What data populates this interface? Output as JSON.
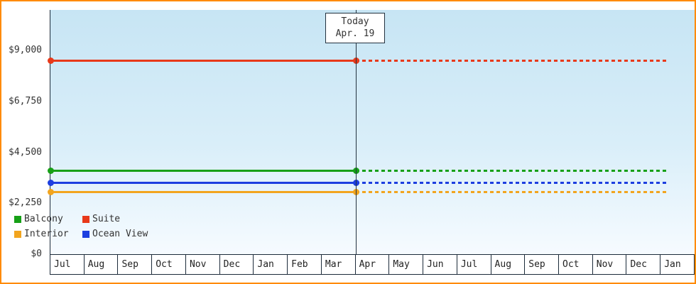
{
  "chart_data": {
    "type": "line",
    "title": "",
    "categories": [
      "Jul",
      "Aug",
      "Sep",
      "Oct",
      "Nov",
      "Dec",
      "Jan",
      "Feb",
      "Mar",
      "Apr",
      "May",
      "Jun",
      "Jul",
      "Aug",
      "Sep",
      "Oct",
      "Nov",
      "Dec",
      "Jan"
    ],
    "series": [
      {
        "name": "Balcony",
        "color": "#17a017",
        "value": 3700
      },
      {
        "name": "Suite",
        "color": "#e8391a",
        "value": 8550
      },
      {
        "name": "Interior",
        "color": "#f2a51f",
        "value": 2750
      },
      {
        "name": "Ocean View",
        "color": "#1d3fe0",
        "value": 3150
      }
    ],
    "legend_order": [
      "Balcony",
      "Suite",
      "Interior",
      "Ocean View"
    ],
    "yticks": [
      0,
      2250,
      4500,
      6750,
      9000
    ],
    "ytick_labels": [
      "$0",
      "$2,250",
      "$4,500",
      "$6,750",
      "$9,000"
    ],
    "ylim": [
      0,
      10800
    ],
    "today": {
      "label_line1": "Today",
      "label_line2": "Apr. 19",
      "category_index": 9
    },
    "line_style": {
      "before_today": "solid",
      "after_today": "dotted"
    },
    "legend_position": "bottom-left-inside"
  },
  "colors": {
    "frame_border": "#ff8a00",
    "axis": "#1c2b3a",
    "plot_background_top": "#c7e5f4",
    "plot_background_bottom": "#f6fbff",
    "text": "#333333"
  }
}
